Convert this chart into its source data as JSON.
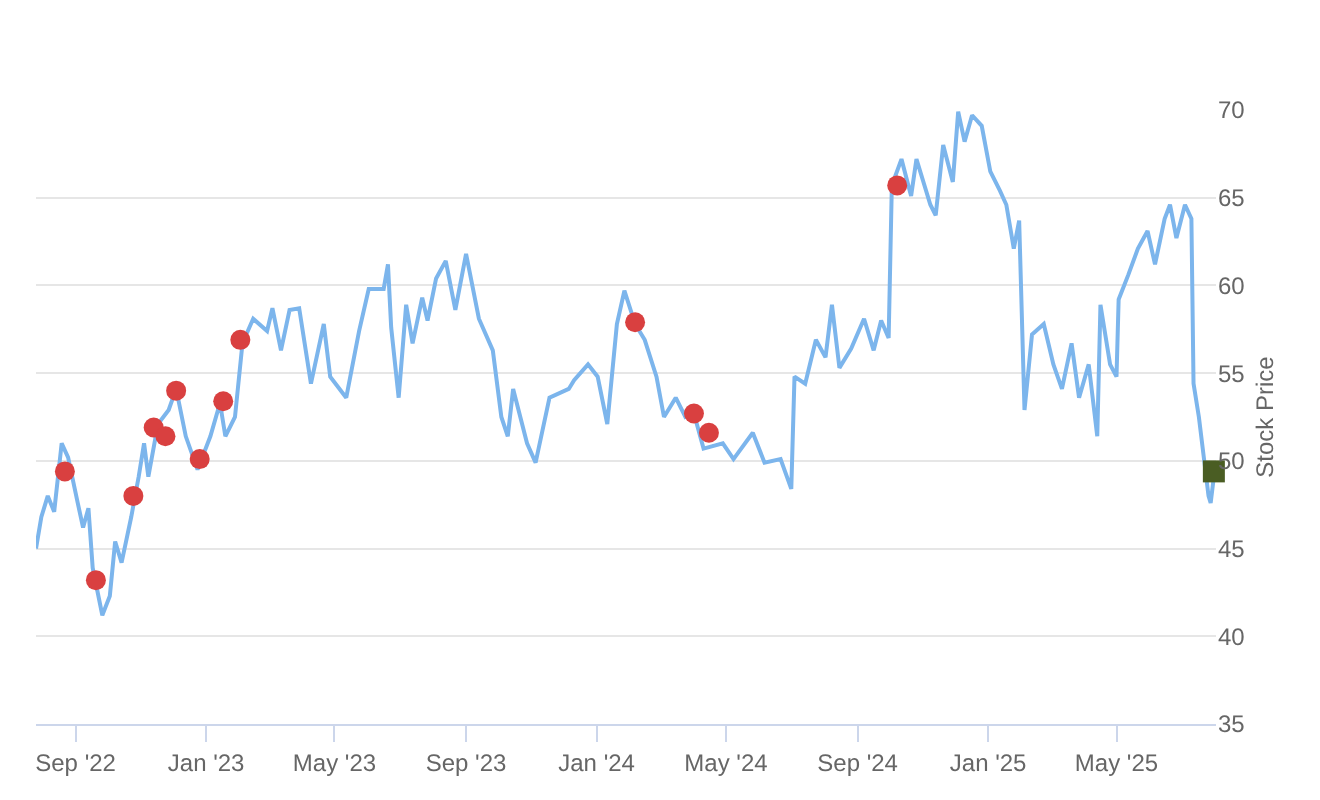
{
  "chart_data": {
    "type": "line",
    "ylabel": "Stock Price",
    "xlim": [
      "2022-07-26",
      "2025-08-02"
    ],
    "ylim": [
      35,
      70
    ],
    "yticks": [
      35,
      40,
      45,
      50,
      55,
      60,
      65,
      70
    ],
    "xticks": [
      {
        "value": "2022-09-01",
        "label": "Sep '22"
      },
      {
        "value": "2023-01-01",
        "label": "Jan '23"
      },
      {
        "value": "2023-05-01",
        "label": "May '23"
      },
      {
        "value": "2023-09-01",
        "label": "Sep '23"
      },
      {
        "value": "2024-01-01",
        "label": "Jan '24"
      },
      {
        "value": "2024-05-01",
        "label": "May '24"
      },
      {
        "value": "2024-09-01",
        "label": "Sep '24"
      },
      {
        "value": "2025-01-01",
        "label": "Jan '25"
      },
      {
        "value": "2025-05-01",
        "label": "May '25"
      }
    ],
    "grid": "y",
    "series": [
      {
        "marker": "none",
        "color": "#7cb5ec",
        "x": [
          "2022-07-26",
          "2022-07-31",
          "2022-08-06",
          "2022-08-12",
          "2022-08-19",
          "2022-08-25",
          "2022-09-03",
          "2022-09-08",
          "2022-09-13",
          "2022-09-17",
          "2022-09-26",
          "2022-10-03",
          "2022-10-08",
          "2022-10-14",
          "2022-10-23",
          "2022-10-30",
          "2022-11-04",
          "2022-11-08",
          "2022-11-17",
          "2022-11-27",
          "2022-12-04",
          "2022-12-13",
          "2022-12-24",
          "2023-01-05",
          "2023-01-14",
          "2023-01-19",
          "2023-01-28",
          "2023-02-04",
          "2023-02-14",
          "2023-02-27",
          "2023-03-04",
          "2023-03-12",
          "2023-03-20",
          "2023-03-29",
          "2023-04-09",
          "2023-04-21",
          "2023-04-27",
          "2023-05-12",
          "2023-05-24",
          "2023-06-02",
          "2023-06-16",
          "2023-06-20",
          "2023-06-23",
          "2023-06-30",
          "2023-07-07",
          "2023-07-13",
          "2023-07-22",
          "2023-07-27",
          "2023-08-04",
          "2023-08-13",
          "2023-08-22",
          "2023-09-01",
          "2023-09-13",
          "2023-09-26",
          "2023-10-04",
          "2023-10-10",
          "2023-10-15",
          "2023-10-28",
          "2023-11-05",
          "2023-11-18",
          "2023-12-06",
          "2023-12-11",
          "2023-12-24",
          "2024-01-02",
          "2024-01-11",
          "2024-01-20",
          "2024-01-27",
          "2024-02-06",
          "2024-02-15",
          "2024-02-26",
          "2024-03-04",
          "2024-03-15",
          "2024-03-24",
          "2024-04-01",
          "2024-04-10",
          "2024-04-28",
          "2024-05-08",
          "2024-05-26",
          "2024-06-06",
          "2024-06-21",
          "2024-07-01",
          "2024-07-04",
          "2024-07-14",
          "2024-07-24",
          "2024-08-02",
          "2024-08-08",
          "2024-08-15",
          "2024-08-26",
          "2024-09-07",
          "2024-09-16",
          "2024-09-23",
          "2024-09-30",
          "2024-10-03",
          "2024-10-12",
          "2024-10-21",
          "2024-10-26",
          "2024-11-08",
          "2024-11-13",
          "2024-11-20",
          "2024-11-29",
          "2024-12-04",
          "2024-12-10",
          "2024-12-17",
          "2024-12-26",
          "2025-01-03",
          "2025-01-12",
          "2025-01-18",
          "2025-01-25",
          "2025-01-30",
          "2025-02-04",
          "2025-02-11",
          "2025-02-22",
          "2025-03-03",
          "2025-03-11",
          "2025-03-20",
          "2025-03-27",
          "2025-04-05",
          "2025-04-13",
          "2025-04-16",
          "2025-04-25",
          "2025-05-01",
          "2025-05-03",
          "2025-05-12",
          "2025-05-21",
          "2025-05-30",
          "2025-06-06",
          "2025-06-15",
          "2025-06-20",
          "2025-06-26",
          "2025-07-04",
          "2025-07-10",
          "2025-07-12",
          "2025-07-17",
          "2025-07-26",
          "2025-07-28",
          "2025-07-31"
        ],
        "values": [
          45.0,
          46.8,
          48.0,
          47.1,
          51.0,
          50.2,
          47.6,
          46.2,
          47.3,
          43.9,
          41.2,
          42.3,
          45.4,
          44.2,
          46.8,
          49.1,
          51.0,
          49.1,
          52.1,
          52.9,
          54.1,
          51.4,
          49.5,
          51.4,
          53.3,
          51.4,
          52.5,
          56.7,
          58.1,
          57.4,
          58.7,
          56.3,
          58.6,
          58.7,
          54.4,
          57.8,
          54.8,
          53.6,
          57.4,
          59.8,
          59.8,
          61.2,
          57.6,
          53.6,
          58.9,
          56.7,
          59.3,
          58.0,
          60.4,
          61.4,
          58.6,
          61.8,
          58.1,
          56.3,
          52.5,
          51.4,
          54.1,
          51.0,
          49.9,
          53.6,
          54.1,
          54.6,
          55.5,
          54.8,
          52.1,
          57.8,
          59.7,
          57.8,
          56.9,
          54.8,
          52.5,
          53.6,
          52.5,
          52.7,
          50.7,
          51.0,
          50.1,
          51.6,
          49.9,
          50.1,
          48.4,
          54.8,
          54.4,
          56.9,
          55.9,
          58.9,
          55.3,
          56.4,
          58.1,
          56.3,
          58.0,
          57.0,
          65.7,
          67.2,
          65.1,
          67.2,
          64.6,
          64.0,
          68.0,
          65.9,
          69.9,
          68.2,
          69.7,
          69.1,
          66.5,
          65.4,
          64.6,
          62.1,
          63.7,
          52.9,
          57.2,
          57.8,
          55.5,
          54.1,
          56.7,
          53.6,
          55.5,
          51.4,
          58.9,
          55.5,
          54.8,
          59.2,
          60.6,
          62.1,
          63.1,
          61.2,
          63.8,
          64.6,
          62.7,
          64.6,
          63.8,
          54.4,
          52.5,
          48.0,
          47.6,
          49.1
        ]
      },
      {
        "type": "scatter",
        "marker": "circle",
        "color": "#d94040",
        "x": [
          "2022-08-22",
          "2022-09-20",
          "2022-10-25",
          "2022-11-13",
          "2022-11-24",
          "2022-12-04",
          "2022-12-26",
          "2023-01-17",
          "2023-02-02",
          "2024-02-06",
          "2024-04-01",
          "2024-04-15",
          "2024-10-08"
        ],
        "values": [
          49.4,
          43.2,
          48.0,
          51.9,
          51.4,
          54.0,
          50.1,
          53.4,
          56.9,
          57.9,
          52.7,
          51.6,
          65.7
        ]
      },
      {
        "type": "scatter",
        "marker": "square",
        "color": "#4a5d23",
        "x": [
          "2025-07-31"
        ],
        "values": [
          49.4
        ]
      }
    ]
  }
}
